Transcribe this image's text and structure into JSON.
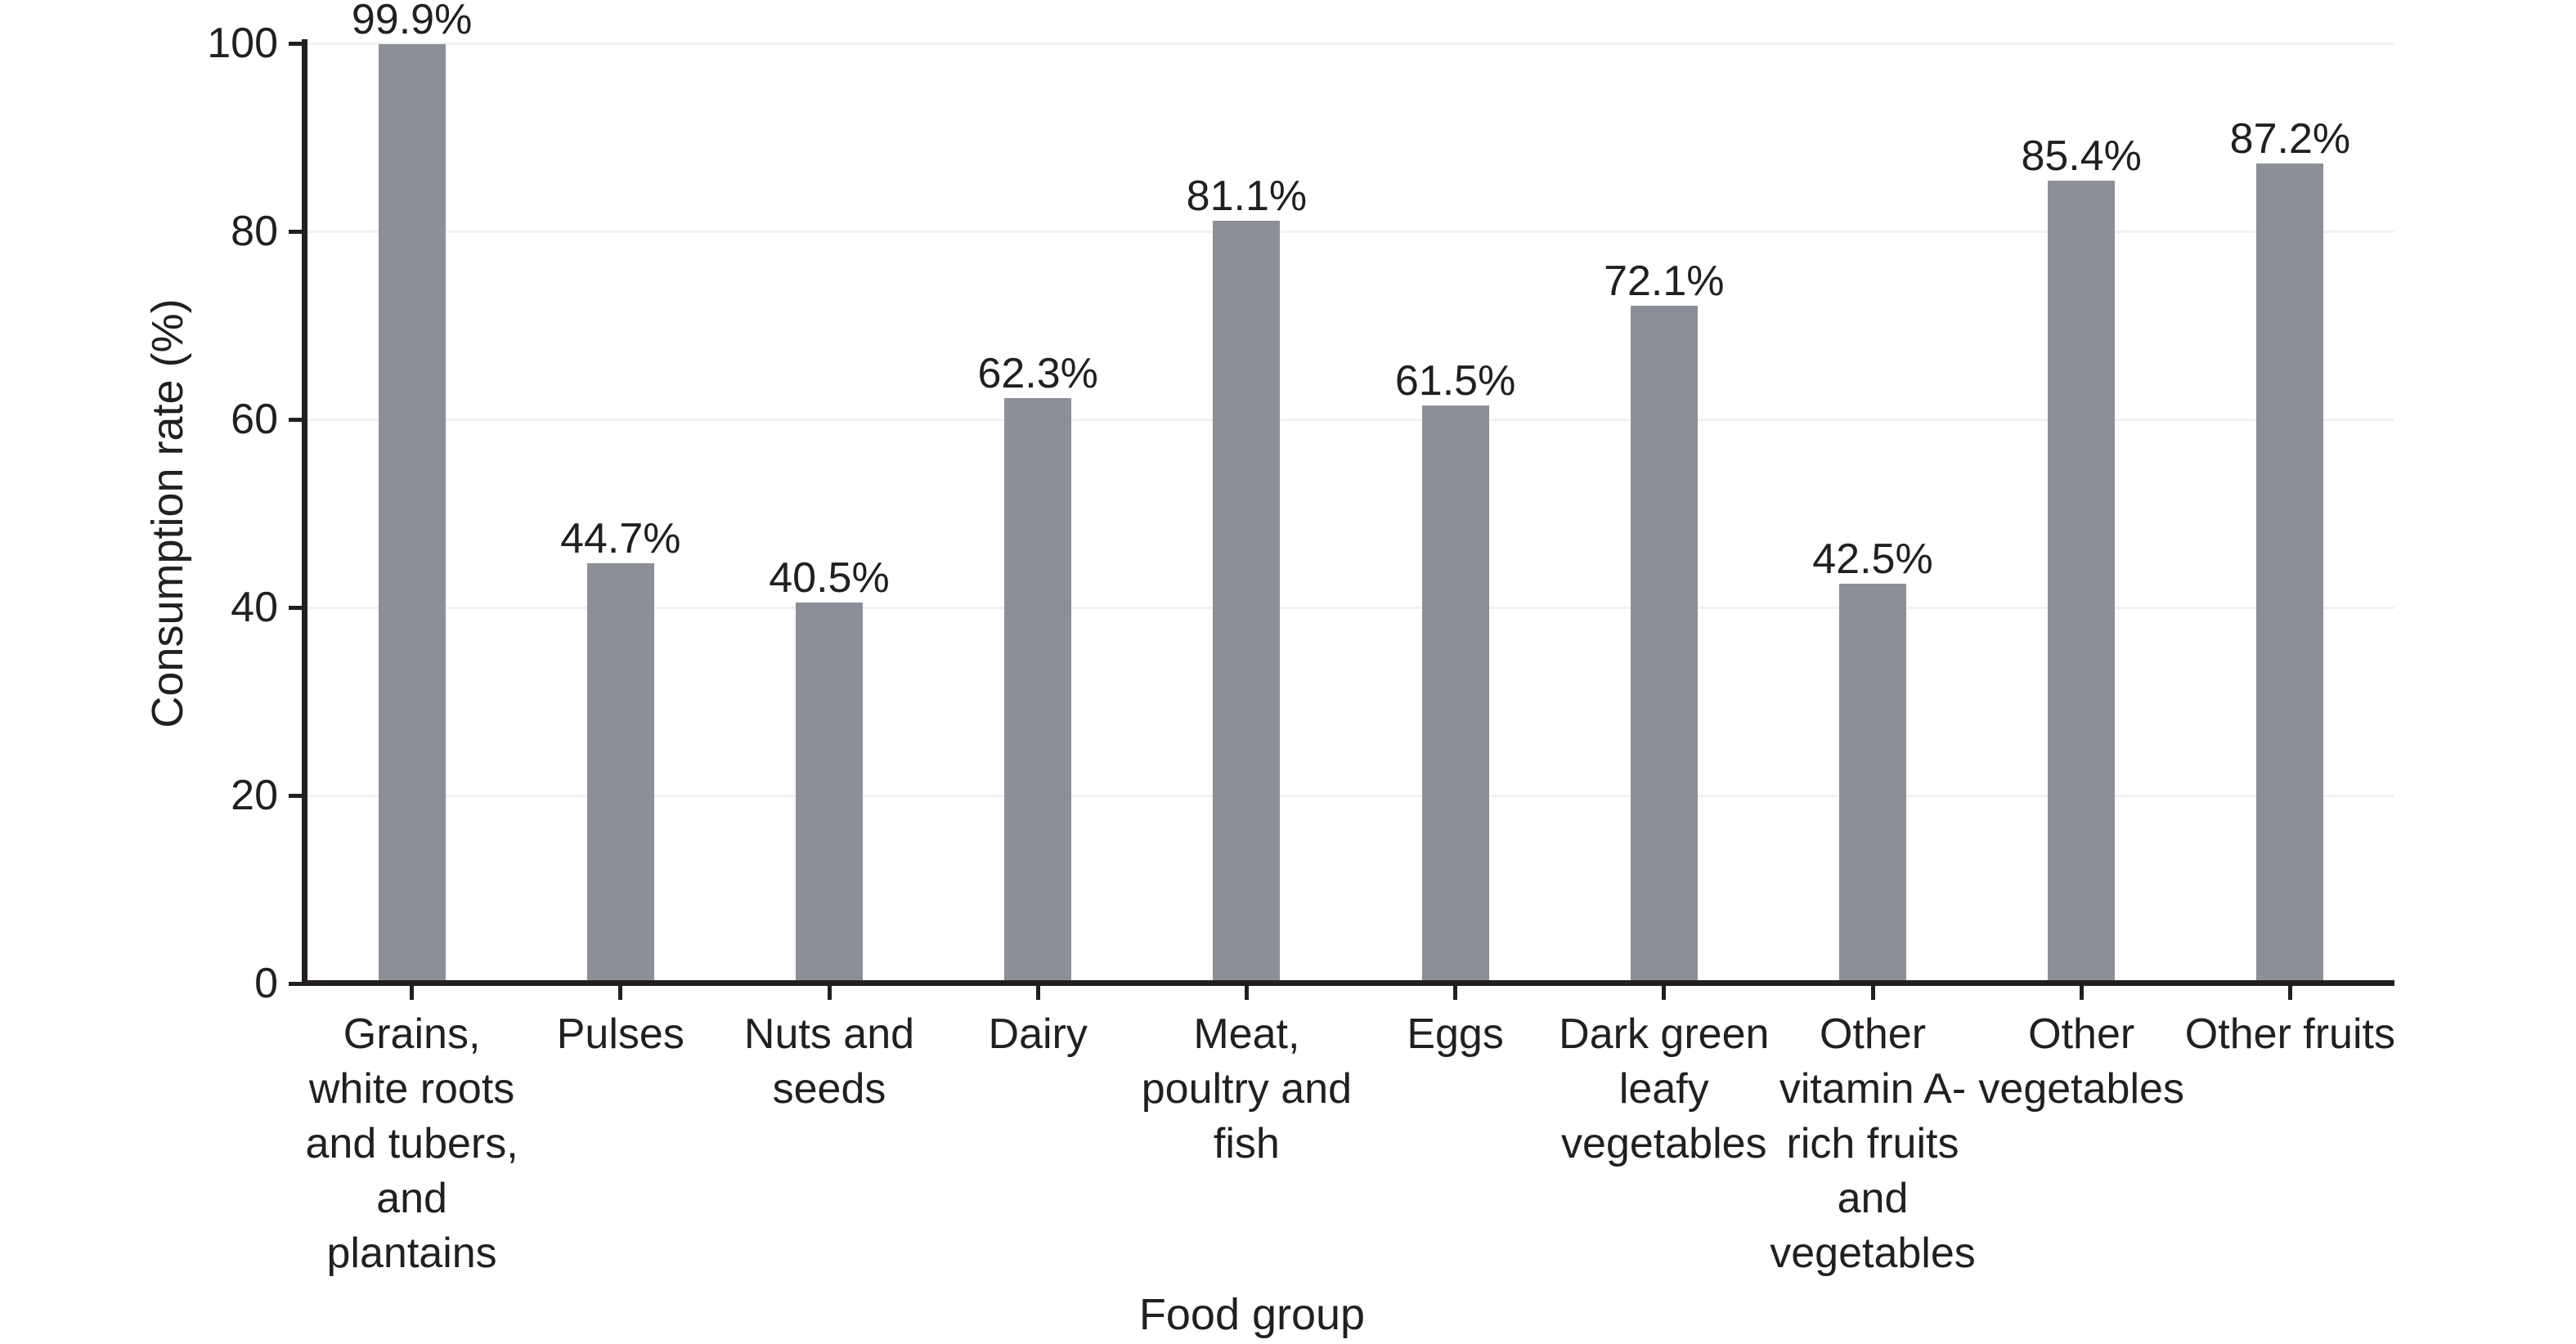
{
  "chart_data": {
    "type": "bar",
    "title": "",
    "xlabel": "Food group",
    "ylabel": "Consumption rate (%)",
    "ylim": [
      0,
      100
    ],
    "yticks": [
      0,
      20,
      40,
      60,
      80,
      100
    ],
    "grid": "faint horizontal gridlines every 20 units",
    "legend": "none",
    "bar_color": "#8C8F98",
    "axis_color": "#231F20",
    "text_color": "#231F20",
    "gridline_color": "#EFF1F3",
    "categories": [
      "Grains, white roots and tubers, and plantains",
      "Pulses",
      "Nuts and seeds",
      "Dairy",
      "Meat, poultry and fish",
      "Eggs",
      "Dark green leafy vegetables",
      "Other vitamin A-rich fruits and vegetables",
      "Other vegetables",
      "Other fruits"
    ],
    "category_label_lines": [
      [
        "Grains,",
        "white roots",
        "and tubers,",
        "and",
        "plantains"
      ],
      [
        "Pulses"
      ],
      [
        "Nuts and",
        "seeds"
      ],
      [
        "Dairy"
      ],
      [
        "Meat,",
        "poultry and",
        "fish"
      ],
      [
        "Eggs"
      ],
      [
        "Dark green",
        "leafy",
        "vegetables"
      ],
      [
        "Other",
        "vitamin A-",
        "rich fruits",
        "and",
        "vegetables"
      ],
      [
        "Other",
        "vegetables"
      ],
      [
        "Other fruits"
      ]
    ],
    "values": [
      99.9,
      44.7,
      40.5,
      62.3,
      81.1,
      61.5,
      72.1,
      42.5,
      85.4,
      87.2
    ],
    "value_labels": [
      "99.9%",
      "44.7%",
      "40.5%",
      "62.3%",
      "81.1%",
      "61.5%",
      "72.1%",
      "42.5%",
      "85.4%",
      "87.2%"
    ]
  }
}
